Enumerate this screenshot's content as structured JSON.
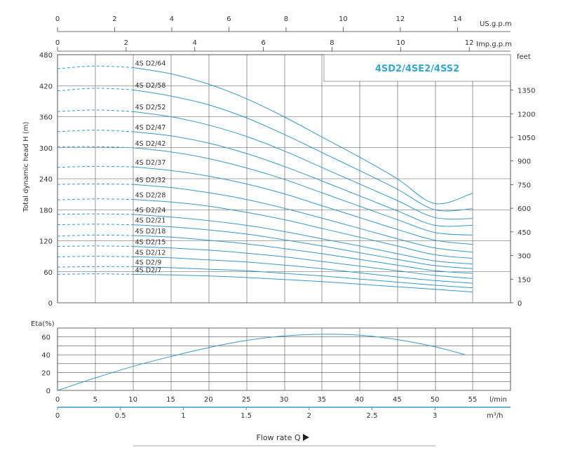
{
  "chart_data": [
    {
      "type": "line",
      "title": "4SD2/4SE2/4SS2",
      "ylabel": "Total dynamic head H (m)",
      "x_unit": "l/min",
      "xlim": [
        0,
        55
      ],
      "ylim": [
        0,
        480
      ],
      "y_ticks": [
        0,
        60,
        120,
        180,
        240,
        300,
        360,
        420,
        480
      ],
      "right_axis": {
        "unit": "feet",
        "ticks": [
          0,
          150,
          300,
          450,
          600,
          750,
          900,
          1050,
          1200,
          1350
        ]
      },
      "top_axis_us": {
        "unit": "US.g.p.m",
        "ticks": [
          0,
          2,
          4,
          6,
          8,
          10,
          12,
          14
        ]
      },
      "top_axis_imp": {
        "unit": "Imp.g.p.m",
        "ticks": [
          0,
          2,
          4,
          6,
          8,
          10,
          12
        ]
      },
      "dashed_until_x": 10,
      "series": [
        {
          "name": "4S D2/64",
          "values": [
            {
              "x": 0,
              "y": 453
            },
            {
              "x": 5,
              "y": 458
            },
            {
              "x": 10,
              "y": 455
            },
            {
              "x": 15,
              "y": 443
            },
            {
              "x": 20,
              "y": 423
            },
            {
              "x": 25,
              "y": 395
            },
            {
              "x": 30,
              "y": 360
            },
            {
              "x": 35,
              "y": 321
            },
            {
              "x": 40,
              "y": 282
            },
            {
              "x": 45,
              "y": 240
            },
            {
              "x": 50,
              "y": 192
            },
            {
              "x": 55,
              "y": 212
            }
          ]
        },
        {
          "name": "4S D2/58",
          "values": [
            {
              "x": 0,
              "y": 410
            },
            {
              "x": 5,
              "y": 415
            },
            {
              "x": 10,
              "y": 412
            },
            {
              "x": 15,
              "y": 400
            },
            {
              "x": 20,
              "y": 383
            },
            {
              "x": 25,
              "y": 358
            },
            {
              "x": 30,
              "y": 326
            },
            {
              "x": 35,
              "y": 291
            },
            {
              "x": 40,
              "y": 256
            },
            {
              "x": 45,
              "y": 220
            },
            {
              "x": 50,
              "y": 180
            },
            {
              "x": 55,
              "y": 182
            }
          ]
        },
        {
          "name": "4S D2/52",
          "values": [
            {
              "x": 0,
              "y": 370
            },
            {
              "x": 5,
              "y": 373
            },
            {
              "x": 10,
              "y": 370
            },
            {
              "x": 15,
              "y": 360
            },
            {
              "x": 20,
              "y": 344
            },
            {
              "x": 25,
              "y": 322
            },
            {
              "x": 30,
              "y": 294
            },
            {
              "x": 35,
              "y": 262
            },
            {
              "x": 40,
              "y": 230
            },
            {
              "x": 45,
              "y": 198
            },
            {
              "x": 50,
              "y": 165
            },
            {
              "x": 55,
              "y": 163
            }
          ]
        },
        {
          "name": "4S D2/47",
          "values": [
            {
              "x": 0,
              "y": 331
            },
            {
              "x": 5,
              "y": 334
            },
            {
              "x": 10,
              "y": 331
            },
            {
              "x": 15,
              "y": 323
            },
            {
              "x": 20,
              "y": 309
            },
            {
              "x": 25,
              "y": 289
            },
            {
              "x": 30,
              "y": 264
            },
            {
              "x": 35,
              "y": 236
            },
            {
              "x": 40,
              "y": 207
            },
            {
              "x": 45,
              "y": 178
            },
            {
              "x": 50,
              "y": 150
            },
            {
              "x": 55,
              "y": 150
            }
          ]
        },
        {
          "name": "4S D2/42",
          "values": [
            {
              "x": 0,
              "y": 302
            },
            {
              "x": 5,
              "y": 302
            },
            {
              "x": 10,
              "y": 300
            },
            {
              "x": 15,
              "y": 292
            },
            {
              "x": 20,
              "y": 279
            },
            {
              "x": 25,
              "y": 261
            },
            {
              "x": 30,
              "y": 239
            },
            {
              "x": 35,
              "y": 213
            },
            {
              "x": 40,
              "y": 187
            },
            {
              "x": 45,
              "y": 161
            },
            {
              "x": 50,
              "y": 136
            },
            {
              "x": 55,
              "y": 131
            }
          ]
        },
        {
          "name": "4S D2/37",
          "values": [
            {
              "x": 0,
              "y": 262
            },
            {
              "x": 5,
              "y": 264
            },
            {
              "x": 10,
              "y": 263
            },
            {
              "x": 15,
              "y": 256
            },
            {
              "x": 20,
              "y": 245
            },
            {
              "x": 25,
              "y": 230
            },
            {
              "x": 30,
              "y": 211
            },
            {
              "x": 35,
              "y": 188
            },
            {
              "x": 40,
              "y": 165
            },
            {
              "x": 45,
              "y": 142
            },
            {
              "x": 50,
              "y": 121
            },
            {
              "x": 55,
              "y": 113
            }
          ]
        },
        {
          "name": "4S D2/32",
          "values": [
            {
              "x": 0,
              "y": 229
            },
            {
              "x": 5,
              "y": 230
            },
            {
              "x": 10,
              "y": 229
            },
            {
              "x": 15,
              "y": 223
            },
            {
              "x": 20,
              "y": 213
            },
            {
              "x": 25,
              "y": 200
            },
            {
              "x": 30,
              "y": 183
            },
            {
              "x": 35,
              "y": 164
            },
            {
              "x": 40,
              "y": 144
            },
            {
              "x": 45,
              "y": 124
            },
            {
              "x": 50,
              "y": 106
            },
            {
              "x": 55,
              "y": 98
            }
          ]
        },
        {
          "name": "4S D2/28",
          "values": [
            {
              "x": 0,
              "y": 199
            },
            {
              "x": 5,
              "y": 201
            },
            {
              "x": 10,
              "y": 200
            },
            {
              "x": 15,
              "y": 195
            },
            {
              "x": 20,
              "y": 187
            },
            {
              "x": 25,
              "y": 175
            },
            {
              "x": 30,
              "y": 161
            },
            {
              "x": 35,
              "y": 144
            },
            {
              "x": 40,
              "y": 127
            },
            {
              "x": 45,
              "y": 110
            },
            {
              "x": 50,
              "y": 93
            },
            {
              "x": 55,
              "y": 86
            }
          ]
        },
        {
          "name": "4S D2/24",
          "values": [
            {
              "x": 0,
              "y": 171
            },
            {
              "x": 5,
              "y": 172
            },
            {
              "x": 10,
              "y": 171
            },
            {
              "x": 15,
              "y": 166
            },
            {
              "x": 20,
              "y": 159
            },
            {
              "x": 25,
              "y": 150
            },
            {
              "x": 30,
              "y": 138
            },
            {
              "x": 35,
              "y": 124
            },
            {
              "x": 40,
              "y": 110
            },
            {
              "x": 45,
              "y": 95
            },
            {
              "x": 50,
              "y": 81
            },
            {
              "x": 55,
              "y": 75
            }
          ]
        },
        {
          "name": "4S D2/21",
          "values": [
            {
              "x": 0,
              "y": 151
            },
            {
              "x": 5,
              "y": 152
            },
            {
              "x": 10,
              "y": 151
            },
            {
              "x": 15,
              "y": 147
            },
            {
              "x": 20,
              "y": 141
            },
            {
              "x": 25,
              "y": 133
            },
            {
              "x": 30,
              "y": 122
            },
            {
              "x": 35,
              "y": 110
            },
            {
              "x": 40,
              "y": 97
            },
            {
              "x": 45,
              "y": 84
            },
            {
              "x": 50,
              "y": 72
            },
            {
              "x": 55,
              "y": 66
            }
          ]
        },
        {
          "name": "4S D2/18",
          "values": [
            {
              "x": 0,
              "y": 129
            },
            {
              "x": 5,
              "y": 131
            },
            {
              "x": 10,
              "y": 130
            },
            {
              "x": 15,
              "y": 127
            },
            {
              "x": 20,
              "y": 121
            },
            {
              "x": 25,
              "y": 114
            },
            {
              "x": 30,
              "y": 105
            },
            {
              "x": 35,
              "y": 95
            },
            {
              "x": 40,
              "y": 84
            },
            {
              "x": 45,
              "y": 73
            },
            {
              "x": 50,
              "y": 62
            },
            {
              "x": 55,
              "y": 57
            }
          ]
        },
        {
          "name": "4S D2/15",
          "values": [
            {
              "x": 0,
              "y": 109
            },
            {
              "x": 5,
              "y": 110
            },
            {
              "x": 10,
              "y": 109
            },
            {
              "x": 15,
              "y": 106
            },
            {
              "x": 20,
              "y": 102
            },
            {
              "x": 25,
              "y": 96
            },
            {
              "x": 30,
              "y": 89
            },
            {
              "x": 35,
              "y": 80
            },
            {
              "x": 40,
              "y": 71
            },
            {
              "x": 45,
              "y": 62
            },
            {
              "x": 50,
              "y": 53
            },
            {
              "x": 55,
              "y": 47
            }
          ]
        },
        {
          "name": "4S D2/12",
          "values": [
            {
              "x": 0,
              "y": 89
            },
            {
              "x": 5,
              "y": 90
            },
            {
              "x": 10,
              "y": 89
            },
            {
              "x": 15,
              "y": 87
            },
            {
              "x": 20,
              "y": 83
            },
            {
              "x": 25,
              "y": 79
            },
            {
              "x": 30,
              "y": 73
            },
            {
              "x": 35,
              "y": 66
            },
            {
              "x": 40,
              "y": 58
            },
            {
              "x": 45,
              "y": 50
            },
            {
              "x": 50,
              "y": 43
            },
            {
              "x": 55,
              "y": 38
            }
          ]
        },
        {
          "name": "4S D2/9",
          "values": [
            {
              "x": 0,
              "y": 69
            },
            {
              "x": 5,
              "y": 70
            },
            {
              "x": 10,
              "y": 70
            },
            {
              "x": 15,
              "y": 68
            },
            {
              "x": 20,
              "y": 65
            },
            {
              "x": 25,
              "y": 62
            },
            {
              "x": 30,
              "y": 57
            },
            {
              "x": 35,
              "y": 52
            },
            {
              "x": 40,
              "y": 46
            },
            {
              "x": 45,
              "y": 40
            },
            {
              "x": 50,
              "y": 34
            },
            {
              "x": 55,
              "y": 29
            }
          ]
        },
        {
          "name": "4S D2/7",
          "values": [
            {
              "x": 0,
              "y": 55
            },
            {
              "x": 5,
              "y": 56
            },
            {
              "x": 10,
              "y": 55
            },
            {
              "x": 15,
              "y": 54
            },
            {
              "x": 20,
              "y": 52
            },
            {
              "x": 25,
              "y": 49
            },
            {
              "x": 30,
              "y": 45
            },
            {
              "x": 35,
              "y": 41
            },
            {
              "x": 40,
              "y": 36
            },
            {
              "x": 45,
              "y": 31
            },
            {
              "x": 50,
              "y": 26
            },
            {
              "x": 55,
              "y": 21
            }
          ]
        }
      ]
    },
    {
      "type": "line",
      "ylabel": "Eta(%)",
      "xlim": [
        0,
        55
      ],
      "ylim": [
        0,
        70
      ],
      "y_ticks": [
        0,
        20,
        40,
        60
      ],
      "series": [
        {
          "values": [
            {
              "x": 0,
              "y": 0
            },
            {
              "x": 5,
              "y": 14
            },
            {
              "x": 10,
              "y": 27
            },
            {
              "x": 15,
              "y": 38
            },
            {
              "x": 20,
              "y": 48
            },
            {
              "x": 25,
              "y": 56
            },
            {
              "x": 30,
              "y": 61
            },
            {
              "x": 35,
              "y": 63
            },
            {
              "x": 40,
              "y": 62
            },
            {
              "x": 45,
              "y": 57
            },
            {
              "x": 50,
              "y": 49
            },
            {
              "x": 54,
              "y": 40
            }
          ]
        }
      ]
    }
  ],
  "x_axis": {
    "lpm_unit": "l/min",
    "lpm_ticks": [
      0,
      5,
      10,
      15,
      20,
      25,
      30,
      35,
      40,
      45,
      50,
      55
    ],
    "m3h_unit": "m³/h",
    "m3h_ticks": [
      "0",
      "0.5",
      "1",
      "1.5",
      "2",
      "2.5",
      "3"
    ]
  },
  "flow_label": "Flow rate Q",
  "colors": {
    "curve": "#3399cc",
    "grid": "#555555",
    "title": "#35a6d6"
  }
}
